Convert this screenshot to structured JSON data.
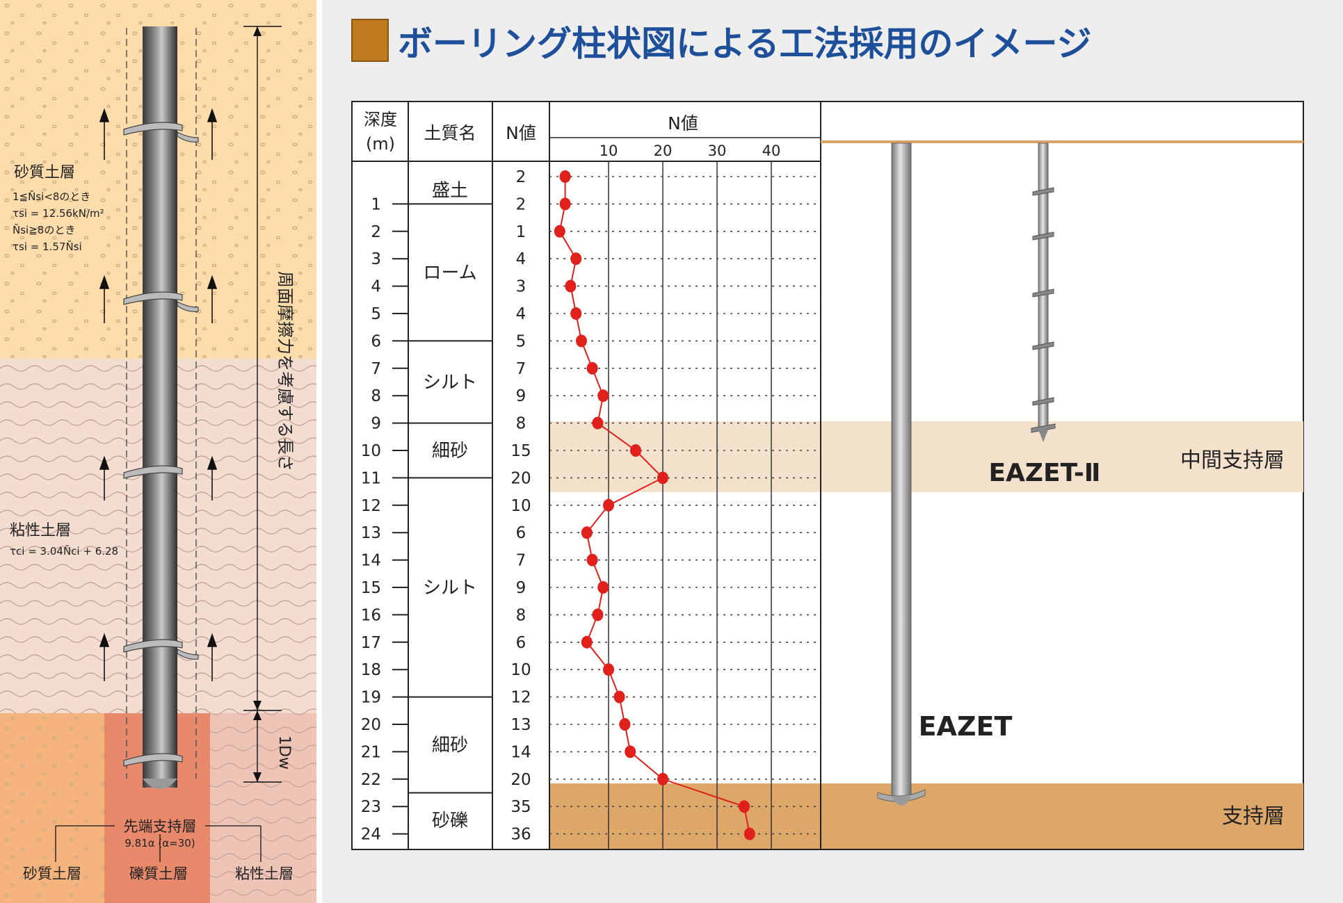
{
  "left_panel": {
    "sandy_layer": {
      "name": "砂質土層",
      "formula_line1": "1≦N̄si<8のとき",
      "formula_line2": "τsi = 12.56kN/m²",
      "formula_line3": "N̄si≧8のとき",
      "formula_line4": "τsi = 1.57N̄si"
    },
    "clay_layer": {
      "name": "粘性土層",
      "formula": "τci = 3.04N̄ci + 6.28"
    },
    "friction_length_label": "周面摩擦力を考慮する長さ",
    "dw_label": "1Dw",
    "tip_layer": {
      "name": "先端支持層",
      "formula": "9.81α (α=30)"
    },
    "bottom_labels": [
      "砂質土層",
      "礫質土層",
      "粘性土層"
    ],
    "colors": {
      "sand": "#fbdcaa",
      "clay": "#f3dcd0",
      "tip_sand": "#f5b47e",
      "tip_gravel": "#e9896b",
      "tip_clay": "#eec4b6"
    }
  },
  "title": "ボーリング柱状図による工法採用のイメージ",
  "log": {
    "headers": {
      "depth_line1": "深度",
      "depth_line2": "(m)",
      "soil": "土質名",
      "n_value": "N値",
      "n_chart": "N値"
    },
    "n_axis_ticks": [
      10,
      20,
      30,
      40
    ],
    "depth_ticks": [
      1,
      2,
      3,
      4,
      5,
      6,
      7,
      8,
      9,
      10,
      11,
      12,
      13,
      14,
      15,
      16,
      17,
      18,
      19,
      20,
      21,
      22,
      23,
      24
    ],
    "soil_layers": [
      {
        "name": "盛土",
        "from": 0,
        "to": 1
      },
      {
        "name": "ローム",
        "from": 1,
        "to": 6
      },
      {
        "name": "シルト",
        "from": 6,
        "to": 9
      },
      {
        "name": "細砂",
        "from": 9,
        "to": 11
      },
      {
        "name": "シルト",
        "from": 11,
        "to": 19
      },
      {
        "name": "細砂",
        "from": 19,
        "to": 22.5
      },
      {
        "name": "砂礫",
        "from": 22.5,
        "to": 24.5
      }
    ],
    "n_values": [
      2,
      2,
      1,
      4,
      3,
      4,
      5,
      7,
      9,
      8,
      15,
      20,
      10,
      6,
      7,
      9,
      8,
      6,
      10,
      12,
      13,
      14,
      20,
      35,
      36
    ]
  },
  "chart_data": {
    "type": "line",
    "title": "",
    "xlabel": "N値",
    "ylabel": "深度(m)",
    "xlim": [
      0,
      50
    ],
    "ylim": [
      24.5,
      0
    ],
    "series": [
      {
        "name": "",
        "x": [
          2,
          2,
          1,
          4,
          3,
          4,
          5,
          7,
          9,
          8,
          15,
          20,
          10,
          6,
          7,
          9,
          8,
          6,
          10,
          12,
          13,
          14,
          20,
          35,
          36
        ],
        "y": [
          0,
          1,
          2,
          3,
          4,
          5,
          6,
          7,
          8,
          9,
          10,
          11,
          12,
          13,
          14,
          15,
          16,
          17,
          18,
          19,
          20,
          21,
          22,
          23,
          24
        ]
      }
    ]
  },
  "piles": {
    "eazet_label": "EAZET",
    "eazet2_label": "EAZET-Ⅱ",
    "middle_layer_label": "中間支持層",
    "bearing_layer_label": "支持層",
    "colors": {
      "middle_band": "#f4e1cc",
      "bearing_band": "#dca769",
      "label_blue": "#1d4f9b"
    }
  }
}
